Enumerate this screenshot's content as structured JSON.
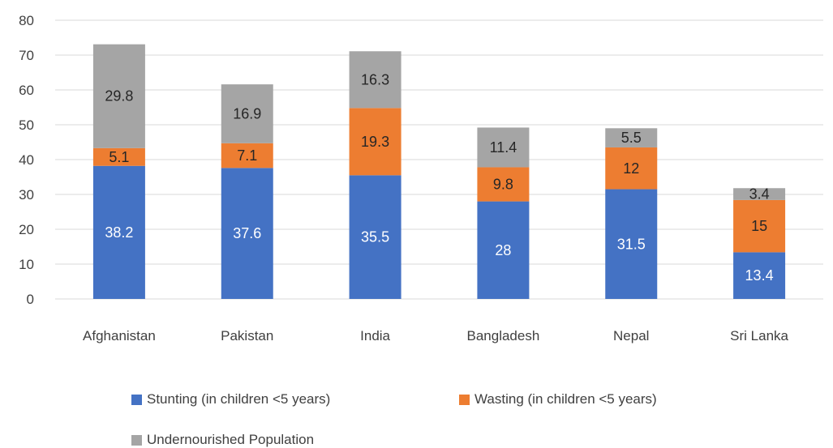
{
  "chart_data": {
    "type": "bar",
    "stacked": true,
    "categories": [
      "Afghanistan",
      "Pakistan",
      "India",
      "Bangladesh",
      "Nepal",
      "Sri Lanka"
    ],
    "series": [
      {
        "name": "Stunting (in children <5 years)",
        "color": "#4472C4",
        "label_color": "#ffffff",
        "values": [
          38.2,
          37.6,
          35.5,
          28,
          31.5,
          13.4
        ]
      },
      {
        "name": "Wasting (in children <5 years)",
        "color": "#ED7D31",
        "label_color": "#262626",
        "values": [
          5.1,
          7.1,
          19.3,
          9.8,
          12,
          15
        ]
      },
      {
        "name": "Undernourished Population",
        "color": "#A5A5A5",
        "label_color": "#262626",
        "values": [
          29.8,
          16.9,
          16.3,
          11.4,
          5.5,
          3.4
        ]
      }
    ],
    "ylim": [
      0,
      80
    ],
    "yticks": [
      0,
      10,
      20,
      30,
      40,
      50,
      60,
      70,
      80
    ],
    "grid": true,
    "legend_position": "bottom",
    "title": "",
    "xlabel": "",
    "ylabel": ""
  }
}
